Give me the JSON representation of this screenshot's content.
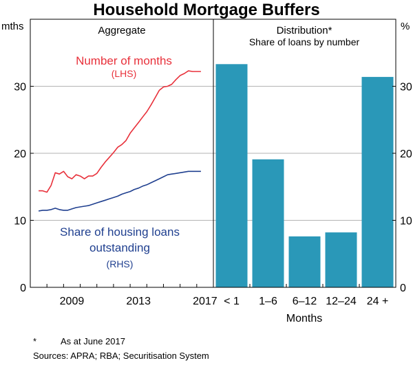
{
  "title": "Household Mortgage Buffers",
  "chart_data": [
    {
      "type": "line",
      "panel_title": "Aggregate",
      "left_axis_unit": "mths",
      "y_ticks": [
        0,
        10,
        20,
        30
      ],
      "ylim": [
        0,
        40
      ],
      "x_range": [
        2007.0,
        2018.0
      ],
      "x_tick_labels": [
        "2009",
        "2013",
        "2017"
      ],
      "x_tick_values": [
        2009,
        2013,
        2017
      ],
      "series": [
        {
          "name": "Number of months",
          "axis_note": "(LHS)",
          "color": "#e8303a",
          "x": [
            2007.5,
            2007.75,
            2008.0,
            2008.25,
            2008.5,
            2008.75,
            2009.0,
            2009.25,
            2009.5,
            2009.75,
            2010.0,
            2010.25,
            2010.5,
            2010.75,
            2011.0,
            2011.25,
            2011.5,
            2011.75,
            2012.0,
            2012.25,
            2012.5,
            2012.75,
            2013.0,
            2013.25,
            2013.5,
            2013.75,
            2014.0,
            2014.25,
            2014.5,
            2014.75,
            2015.0,
            2015.25,
            2015.5,
            2015.75,
            2016.0,
            2016.25,
            2016.5,
            2016.75,
            2017.0,
            2017.25
          ],
          "values": [
            14.4,
            14.4,
            14.2,
            15.2,
            17.1,
            16.9,
            17.3,
            16.5,
            16.2,
            16.8,
            16.6,
            16.2,
            16.6,
            16.6,
            17.0,
            17.9,
            18.7,
            19.4,
            20.1,
            20.9,
            21.3,
            21.9,
            23.0,
            23.8,
            24.6,
            25.4,
            26.2,
            27.2,
            28.3,
            29.4,
            29.9,
            30.0,
            30.3,
            31.0,
            31.6,
            31.9,
            32.3,
            32.2,
            32.2,
            32.2
          ]
        },
        {
          "name": "Share of housing loans outstanding",
          "axis_note": "(RHS)",
          "color": "#1f3f8f",
          "x": [
            2007.5,
            2007.75,
            2008.0,
            2008.25,
            2008.5,
            2008.75,
            2009.0,
            2009.25,
            2009.5,
            2009.75,
            2010.0,
            2010.25,
            2010.5,
            2010.75,
            2011.0,
            2011.25,
            2011.5,
            2011.75,
            2012.0,
            2012.25,
            2012.5,
            2012.75,
            2013.0,
            2013.25,
            2013.5,
            2013.75,
            2014.0,
            2014.25,
            2014.5,
            2014.75,
            2015.0,
            2015.25,
            2015.5,
            2015.75,
            2016.0,
            2016.25,
            2016.5,
            2016.75,
            2017.0,
            2017.25
          ],
          "values": [
            11.4,
            11.5,
            11.5,
            11.6,
            11.8,
            11.6,
            11.5,
            11.5,
            11.7,
            11.9,
            12.0,
            12.1,
            12.2,
            12.4,
            12.6,
            12.8,
            13.0,
            13.2,
            13.4,
            13.6,
            13.9,
            14.1,
            14.3,
            14.6,
            14.8,
            15.1,
            15.3,
            15.6,
            15.9,
            16.2,
            16.5,
            16.8,
            16.9,
            17.0,
            17.1,
            17.2,
            17.3,
            17.3,
            17.3,
            17.3
          ]
        }
      ]
    },
    {
      "type": "bar",
      "panel_title": "Distribution*",
      "panel_subtitle": "Share of loans by number",
      "right_axis_unit": "%",
      "y_ticks": [
        0,
        10,
        20,
        30
      ],
      "ylim": [
        0,
        40
      ],
      "categories": [
        "< 1",
        "1–6",
        "6–12",
        "12–24",
        "24 +"
      ],
      "values": [
        33.3,
        19.1,
        7.6,
        8.2,
        31.4
      ],
      "xlabel": "Months",
      "color": "#2a98b8"
    }
  ],
  "footnote": {
    "marker": "*",
    "text": "As at June 2017",
    "sources": "Sources: APRA; RBA; Securitisation System"
  }
}
